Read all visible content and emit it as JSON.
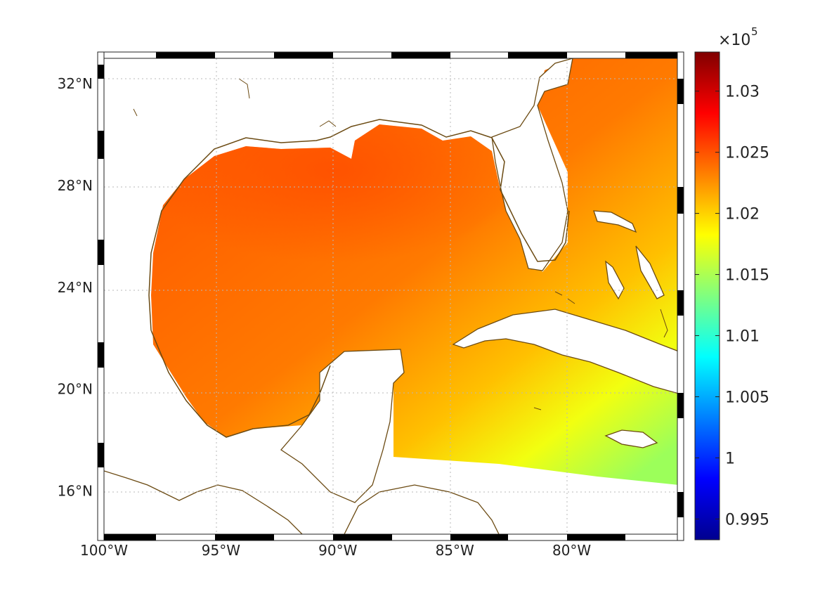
{
  "map": {
    "x_tick_labels": [
      "100°W",
      "95°W",
      "90°W",
      "85°W",
      "80°W"
    ],
    "x_tick_values": [
      -100,
      -95,
      -90,
      -85,
      -80
    ],
    "y_tick_labels": [
      "32°N",
      "28°N",
      "24°N",
      "20°N",
      "16°N"
    ],
    "y_tick_values": [
      32,
      28,
      24,
      20,
      16
    ],
    "lon_range": [
      -100,
      -75
    ],
    "lat_range": [
      14.3,
      33
    ],
    "coast_color": "#6b4a12",
    "grid": "dotted",
    "field_pattern": "high pressure (~1.025e5) over northern Gulf of Mexico, decreasing to ~1.017e5 in the Caribbean south-east"
  },
  "colorbar": {
    "exponent_base": "×10",
    "exponent_power": "5",
    "tick_labels": [
      "1.03",
      "1.025",
      "1.02",
      "1.015",
      "1.01",
      "1.005",
      "1",
      "0.995"
    ],
    "tick_values": [
      1.03,
      1.025,
      1.02,
      1.015,
      1.01,
      1.005,
      1.0,
      0.995
    ],
    "range": [
      0.9933,
      1.0332
    ],
    "colormap": "jet"
  },
  "chart_data": {
    "type": "heatmap",
    "title": "",
    "xlabel": "",
    "ylabel": "",
    "xlim": [
      -100,
      -75
    ],
    "ylim": [
      14.3,
      33
    ],
    "colorbar_ticks": [
      0.995,
      1.0,
      1.005,
      1.01,
      1.015,
      1.02,
      1.025,
      1.03
    ],
    "colorbar_multiplier": "×10^5",
    "sample_values": [
      {
        "lon": -88,
        "lat": 28,
        "value": 1.025
      },
      {
        "lon": -93,
        "lat": 25,
        "value": 1.0225
      },
      {
        "lon": -80,
        "lat": 31,
        "value": 1.021
      },
      {
        "lon": -82,
        "lat": 21,
        "value": 1.019
      },
      {
        "lon": -78,
        "lat": 18,
        "value": 1.017
      }
    ]
  }
}
